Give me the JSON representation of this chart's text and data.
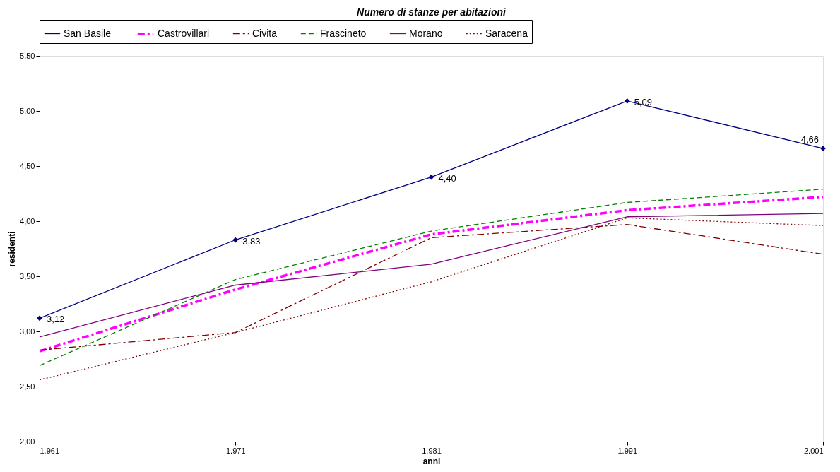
{
  "chart_data": {
    "type": "line",
    "title": "Numero di stanze per abitazioni",
    "xlabel": "anni",
    "ylabel": "residenti",
    "x": [
      1961,
      1971,
      1981,
      1991,
      2001
    ],
    "xlim": [
      1961,
      2001
    ],
    "xticks": [
      {
        "value": 1961,
        "label": "1.961"
      },
      {
        "value": 1971,
        "label": "1.971"
      },
      {
        "value": 1981,
        "label": "1.981"
      },
      {
        "value": 1991,
        "label": "1.991"
      },
      {
        "value": 2001,
        "label": "2.001"
      }
    ],
    "ylim": [
      2,
      5.5
    ],
    "yticks": [
      {
        "value": 2,
        "label": "2,00"
      },
      {
        "value": 2.5,
        "label": "2,50"
      },
      {
        "value": 3,
        "label": "3,00"
      },
      {
        "value": 3.5,
        "label": "3,50"
      },
      {
        "value": 4,
        "label": "4,00"
      },
      {
        "value": 4.5,
        "label": "4,50"
      },
      {
        "value": 5,
        "label": "5,00"
      },
      {
        "value": 5.5,
        "label": "5,50"
      }
    ],
    "grid": false,
    "legend": "top",
    "series": [
      {
        "name": "San Basile",
        "color": "#000080",
        "values": [
          3.12,
          3.83,
          4.4,
          5.09,
          4.66
        ],
        "marker": "diamond",
        "line_style": "solid",
        "value_labels": [
          "3,12",
          "3,83",
          "4,40",
          "5,09",
          "4,66"
        ]
      },
      {
        "name": "Castrovillari",
        "color": "#ff00ff",
        "values": [
          2.82,
          3.38,
          3.88,
          4.1,
          4.22
        ],
        "marker": "none",
        "line_style": "dashdot"
      },
      {
        "name": "Civita",
        "color": "#800000",
        "values": [
          2.83,
          2.99,
          3.85,
          3.97,
          3.7
        ],
        "marker": "none",
        "line_style": "dashdot"
      },
      {
        "name": "Frascineto",
        "color": "#008000",
        "values": [
          2.69,
          3.47,
          3.91,
          4.17,
          4.29
        ],
        "marker": "none",
        "line_style": "dashed"
      },
      {
        "name": "Morano",
        "color": "#800080",
        "values": [
          2.95,
          3.42,
          3.61,
          4.04,
          4.07
        ],
        "marker": "none",
        "line_style": "solid"
      },
      {
        "name": "Saracena",
        "color": "#800000",
        "values": [
          2.56,
          2.99,
          3.45,
          4.03,
          3.96
        ],
        "marker": "none",
        "line_style": "dotted"
      }
    ]
  }
}
